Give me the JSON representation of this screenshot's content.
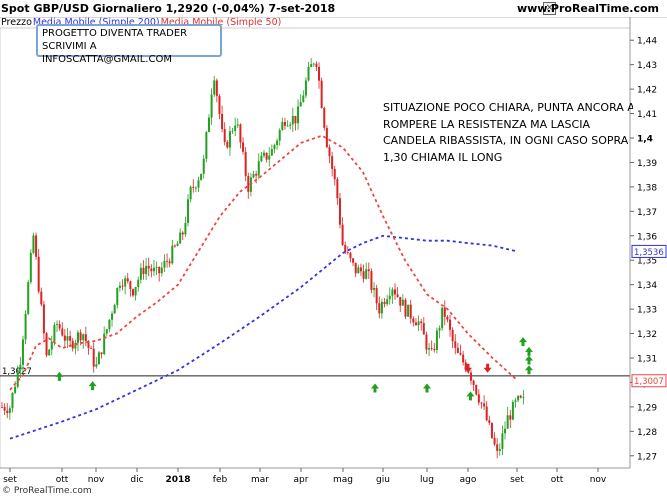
{
  "header": {
    "symbol_line": "Spot GBP/USD   Giornaliero   1,2920 (-0,04%)   7-set-2018",
    "site": "www.ProRealTime.com"
  },
  "legend": {
    "price_label": "Prezzo",
    "ma200_label": "Media Mobile (Simple 200)",
    "ma50_label": "Media Mobile (Simple 50)"
  },
  "note_box": {
    "line1": "PROGETTO DIVENTA TRADER",
    "line2": "SCRIVIMI A INFOSCATTA@GMAIL.COM"
  },
  "comment": {
    "line1": "SITUAZIONE POCO CHIARA, PUNTA ANCORA A",
    "line2": "ROMPERE LA RESISTENZA MA LASCIA",
    "line3": "CANDELA RIBASSISTA, IN OGNI CASO SOPRA",
    "line4": "1,30 CHIAMA IL LONG"
  },
  "footer": "© ProRealTime.com",
  "colors": {
    "up": "#22a022",
    "down": "#dd2222",
    "ma200": "#3333dd",
    "ma50": "#ee4444",
    "level": "#222222"
  },
  "chart_data": {
    "type": "candlestick",
    "x_tick_labels": [
      "set",
      "ott",
      "nov",
      "dic",
      "2018",
      "feb",
      "mar",
      "apr",
      "mag",
      "giu",
      "lug",
      "ago",
      "set",
      "ott",
      "nov"
    ],
    "y_tick_labels": [
      "1,27",
      "1,28",
      "1,29",
      "1,3",
      "1,31",
      "1,32",
      "1,33",
      "1,34",
      "1,35",
      "1,36",
      "1,37",
      "1,38",
      "1,39",
      "1,4",
      "1,41",
      "1,42",
      "1,43",
      "1,44"
    ],
    "ylim": [
      1.265,
      1.445
    ],
    "horizontal_level": {
      "value": 1.3027,
      "label": "1,3027"
    },
    "ma200_last": {
      "value": 1.3536,
      "label": "1,3536"
    },
    "ma50_last": {
      "value": 1.3007,
      "label": "1,3007"
    },
    "ma50_points": [
      [
        0,
        1.297
      ],
      [
        0.25,
        1.303
      ],
      [
        0.5,
        1.315
      ],
      [
        0.75,
        1.318
      ],
      [
        1,
        1.314
      ],
      [
        1.5,
        1.316
      ],
      [
        2,
        1.317
      ],
      [
        2.5,
        1.32
      ],
      [
        3,
        1.327
      ],
      [
        3.5,
        1.333
      ],
      [
        4,
        1.34
      ],
      [
        4.5,
        1.354
      ],
      [
        5,
        1.368
      ],
      [
        5.5,
        1.378
      ],
      [
        6,
        1.384
      ],
      [
        6.5,
        1.391
      ],
      [
        7,
        1.398
      ],
      [
        7.5,
        1.401
      ],
      [
        8,
        1.396
      ],
      [
        8.5,
        1.386
      ],
      [
        9,
        1.368
      ],
      [
        9.5,
        1.35
      ],
      [
        10,
        1.336
      ],
      [
        10.5,
        1.33
      ],
      [
        11,
        1.32
      ],
      [
        11.5,
        1.31
      ],
      [
        12,
        1.301
      ]
    ],
    "ma200_points": [
      [
        0,
        1.277
      ],
      [
        1,
        1.284
      ],
      [
        2,
        1.289
      ],
      [
        3,
        1.297
      ],
      [
        4,
        1.305
      ],
      [
        5,
        1.316
      ],
      [
        6,
        1.327
      ],
      [
        7,
        1.339
      ],
      [
        7.5,
        1.346
      ],
      [
        8,
        1.353
      ],
      [
        8.5,
        1.357
      ],
      [
        9,
        1.36
      ],
      [
        9.5,
        1.359
      ],
      [
        10,
        1.358
      ],
      [
        10.5,
        1.358
      ],
      [
        11,
        1.357
      ],
      [
        11.5,
        1.356
      ],
      [
        12,
        1.3536
      ]
    ],
    "price_anchors": [
      [
        0,
        1.29
      ],
      [
        0.2,
        1.31
      ],
      [
        0.45,
        1.36
      ],
      [
        0.7,
        1.31
      ],
      [
        0.9,
        1.324
      ],
      [
        1.2,
        1.315
      ],
      [
        1.6,
        1.321
      ],
      [
        2.0,
        1.306
      ],
      [
        2.3,
        1.324
      ],
      [
        2.6,
        1.343
      ],
      [
        2.9,
        1.338
      ],
      [
        3.2,
        1.348
      ],
      [
        3.5,
        1.344
      ],
      [
        3.9,
        1.354
      ],
      [
        4.1,
        1.36
      ],
      [
        4.3,
        1.378
      ],
      [
        4.6,
        1.388
      ],
      [
        4.85,
        1.428
      ],
      [
        5.1,
        1.395
      ],
      [
        5.4,
        1.408
      ],
      [
        5.7,
        1.38
      ],
      [
        6.0,
        1.39
      ],
      [
        6.3,
        1.395
      ],
      [
        6.6,
        1.408
      ],
      [
        6.9,
        1.408
      ],
      [
        7.15,
        1.425
      ],
      [
        7.35,
        1.434
      ],
      [
        7.6,
        1.4
      ],
      [
        7.85,
        1.378
      ],
      [
        8.0,
        1.355
      ],
      [
        8.3,
        1.346
      ],
      [
        8.6,
        1.345
      ],
      [
        8.9,
        1.33
      ],
      [
        9.2,
        1.34
      ],
      [
        9.5,
        1.33
      ],
      [
        9.8,
        1.325
      ],
      [
        10.1,
        1.31
      ],
      [
        10.4,
        1.33
      ],
      [
        10.7,
        1.312
      ],
      [
        11.0,
        1.306
      ],
      [
        11.3,
        1.29
      ],
      [
        11.6,
        1.27
      ],
      [
        11.8,
        1.285
      ],
      [
        12.0,
        1.292
      ]
    ],
    "arrows_up": [
      [
        0.95,
        1.3023
      ],
      [
        1.9,
        1.2985
      ],
      [
        8.8,
        1.2975
      ],
      [
        10.0,
        1.2975
      ],
      [
        11.05,
        1.2943
      ],
      [
        12.15,
        1.3165
      ],
      [
        12.3,
        1.3125
      ],
      [
        12.3,
        1.309
      ],
      [
        12.3,
        1.305
      ]
    ],
    "arrows_down": [
      [
        11.0,
        1.306
      ],
      [
        11.4,
        1.306
      ]
    ]
  }
}
